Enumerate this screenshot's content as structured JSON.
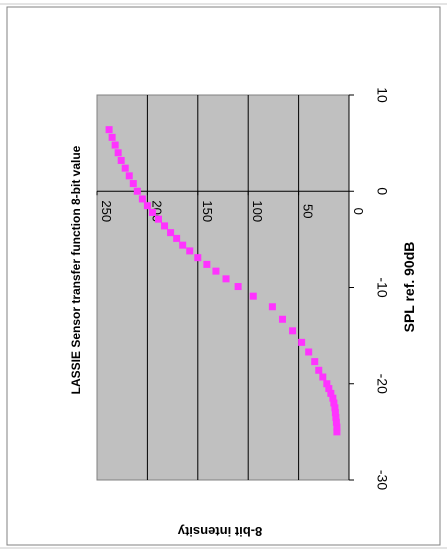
{
  "chart_data": {
    "type": "scatter",
    "title": "LASSIE Sensor transfer function 8-bit value",
    "xlabel": "SPL ref. 90dB",
    "ylabel": "8-bit intensity",
    "xlim": [
      -30,
      10
    ],
    "ylim": [
      0,
      250
    ],
    "x_ticks": [
      -30,
      -20,
      -10,
      0,
      10
    ],
    "y_ticks": [
      0,
      50,
      100,
      150,
      200,
      250
    ],
    "x_tick_labels": [
      "-30",
      "-20",
      "-10",
      "0",
      "10"
    ],
    "y_tick_labels": [
      "0",
      "50",
      "100",
      "150",
      "200",
      "250"
    ],
    "grid": true,
    "legend": "none",
    "rotation": "rotated 90 degrees clockwise",
    "colors": {
      "marker": "#ff33ff",
      "plot_area": "#c0c0c0",
      "gridline": "#000000",
      "frame": "#808080"
    },
    "series": [
      {
        "marker": "square",
        "x": [
          -25,
          -24.5,
          -24,
          -23.5,
          -23,
          -22.5,
          -22,
          -21.5,
          -21,
          -20.5,
          -20,
          -19.3,
          -18.6,
          -17.7,
          -16.7,
          -15.7,
          -14.5,
          -13.3,
          -12,
          -10.9,
          -9.9,
          -9.1,
          -8.3,
          -7.6,
          -6.9,
          -6.2,
          -5.6,
          -4.9,
          -4.3,
          -3.6,
          -2.9,
          -2.2,
          -1.5,
          -0.8,
          0,
          0.8,
          1.6,
          2.4,
          3.2,
          4,
          4.8,
          5.6,
          6.4
        ],
        "y": [
          12,
          12,
          12.5,
          13,
          13.5,
          14,
          15,
          16,
          18,
          20,
          22,
          26,
          30,
          34,
          40,
          47,
          56,
          66,
          76,
          95,
          110,
          122,
          132,
          141,
          150,
          158,
          165,
          171,
          177,
          183,
          189,
          195,
          200,
          205,
          210,
          214,
          218,
          222,
          226,
          229,
          232,
          235,
          238
        ]
      }
    ]
  }
}
